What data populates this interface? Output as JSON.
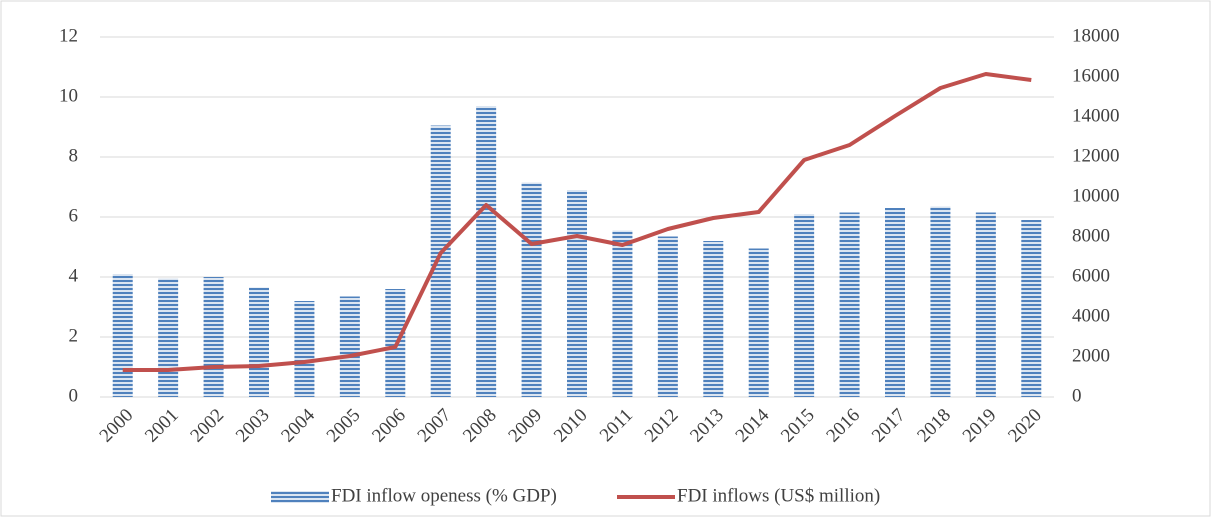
{
  "chart_data": {
    "type": "bar_line",
    "categories": [
      "2000",
      "2001",
      "2002",
      "2003",
      "2004",
      "2005",
      "2006",
      "2007",
      "2008",
      "2009",
      "2010",
      "2011",
      "2012",
      "2013",
      "2014",
      "2015",
      "2016",
      "2017",
      "2018",
      "2019",
      "2020"
    ],
    "series": [
      {
        "name": "FDI inflow openess (% GDP)",
        "type": "bar",
        "color": "#4f81bd",
        "values": [
          4.1,
          3.95,
          4.0,
          3.65,
          3.2,
          3.35,
          3.6,
          9.05,
          9.7,
          7.15,
          6.9,
          5.55,
          5.35,
          5.2,
          4.95,
          6.1,
          6.15,
          6.3,
          6.35,
          6.15,
          5.9
        ]
      },
      {
        "name": "FDI inflows (US$ million)",
        "type": "line",
        "color": "#c0504d",
        "axis": "y2",
        "values": [
          1350,
          1350,
          1500,
          1550,
          1750,
          2050,
          2500,
          7200,
          9600,
          7650,
          8050,
          7600,
          8400,
          8950,
          9250,
          11850,
          12600,
          14050,
          15450,
          16150,
          15850
        ]
      }
    ],
    "ylim": [
      0,
      12
    ],
    "yticks": [
      0,
      2,
      4,
      6,
      8,
      10,
      12
    ],
    "y2lim": [
      0,
      18000
    ],
    "y2ticks": [
      0,
      2000,
      4000,
      6000,
      8000,
      10000,
      12000,
      14000,
      16000,
      18000
    ],
    "grid": true,
    "legend": "bottom"
  }
}
